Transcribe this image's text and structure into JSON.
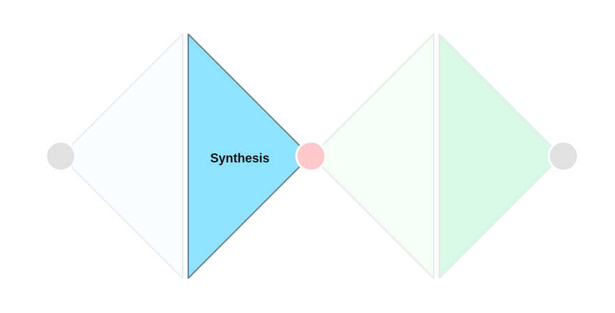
{
  "diagram": {
    "segments": [
      {
        "id": "segment-1",
        "label": "",
        "state": "inactive",
        "fill": "#f8fdff",
        "stroke": "#e2e6e9"
      },
      {
        "id": "segment-2",
        "label": "Synthesis",
        "state": "active",
        "fill": "#8fe3ff",
        "stroke": "#6c8088"
      },
      {
        "id": "segment-3",
        "label": "",
        "state": "inactive",
        "fill": "#f5fff6",
        "stroke": "#e2e6e9"
      },
      {
        "id": "segment-4",
        "label": "",
        "state": "inactive",
        "fill": "#d9f9e7",
        "stroke": "#e2e6e9"
      }
    ],
    "nodes": [
      {
        "id": "node-1",
        "state": "inactive",
        "fill": "#e1e1e1"
      },
      {
        "id": "node-2",
        "state": "active",
        "fill": "#ffc9cb"
      },
      {
        "id": "node-3",
        "state": "inactive",
        "fill": "#e1e1e1"
      }
    ]
  }
}
